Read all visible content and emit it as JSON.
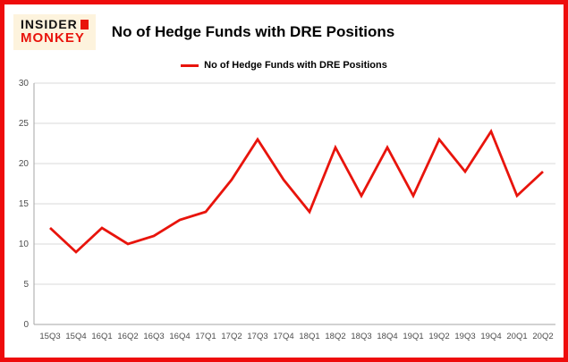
{
  "header": {
    "logo_line1": "INSIDER",
    "logo_line2": "MONKEY",
    "title": "No of Hedge Funds with DRE Positions"
  },
  "legend": {
    "label": "No of Hedge Funds with DRE Positions"
  },
  "colors": {
    "line": "#e8140c",
    "border": "#ee0c0c",
    "grid": "#d9d9d9",
    "axis": "#a6a6a6",
    "tick_text": "#4d4d4d"
  },
  "chart_data": {
    "type": "line",
    "title": "No of Hedge Funds with DRE Positions",
    "categories": [
      "15Q3",
      "15Q4",
      "16Q1",
      "16Q2",
      "16Q3",
      "16Q4",
      "17Q1",
      "17Q2",
      "17Q3",
      "17Q4",
      "18Q1",
      "18Q2",
      "18Q3",
      "18Q4",
      "19Q1",
      "19Q2",
      "19Q3",
      "19Q4",
      "20Q1",
      "20Q2"
    ],
    "values": [
      12,
      9,
      12,
      10,
      11,
      13,
      14,
      18,
      23,
      18,
      14,
      22,
      16,
      22,
      16,
      23,
      19,
      24,
      16,
      19
    ],
    "xlabel": "",
    "ylabel": "",
    "ylim": [
      0,
      30
    ],
    "yticks": [
      0,
      5,
      10,
      15,
      20,
      25,
      30
    ],
    "grid": true,
    "legend_position": "top",
    "series_color": "#e8140c"
  }
}
